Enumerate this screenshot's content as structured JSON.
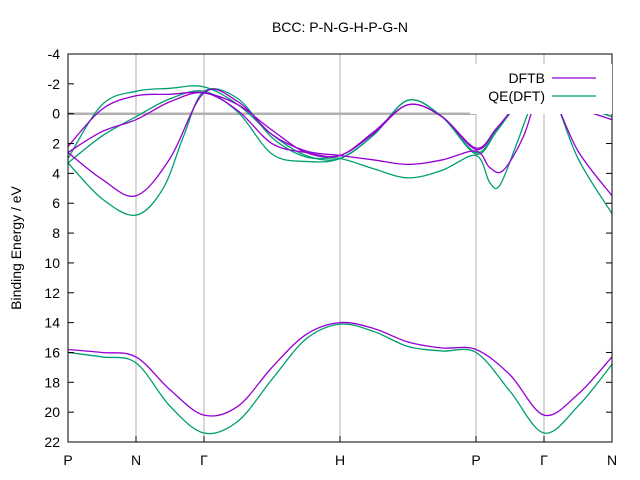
{
  "chart_data": {
    "type": "line",
    "title": "BCC: P-N-G-H-P-G-N",
    "xlabel": "",
    "ylabel": "Binding Energy / eV",
    "x_tick_labels": [
      "P",
      "N",
      "Γ",
      "H",
      "P",
      "Γ",
      "N"
    ],
    "x_ticks": [
      0,
      1,
      2,
      4,
      6,
      7,
      8
    ],
    "xlim": [
      0,
      8
    ],
    "ylim": [
      22,
      -4
    ],
    "y_ticks": [
      -4,
      -2,
      0,
      2,
      4,
      6,
      8,
      10,
      12,
      14,
      16,
      18,
      20,
      22
    ],
    "y_tick_labels": [
      "-4",
      "-2",
      "0",
      "2",
      "4",
      "6",
      "8",
      "10",
      "12",
      "14",
      "16",
      "18",
      "20",
      "22"
    ],
    "y_inverted": true,
    "grid": "vertical at high-symmetry points",
    "zero_line": 0,
    "legend_position": "top-right",
    "series": [
      {
        "name": "DFTB",
        "color": "#9400d3",
        "bands": [
          [
            [
              0,
              15.8
            ],
            [
              0.5,
              16.0
            ],
            [
              1,
              16.3
            ],
            [
              1.5,
              18.5
            ],
            [
              2,
              20.2
            ],
            [
              2.5,
              19.6
            ],
            [
              3,
              17.0
            ],
            [
              3.5,
              14.8
            ],
            [
              4,
              14.0
            ],
            [
              4.5,
              14.4
            ],
            [
              5,
              15.3
            ],
            [
              5.5,
              15.7
            ],
            [
              6,
              15.8
            ],
            [
              6.5,
              17.5
            ],
            [
              7,
              20.2
            ],
            [
              7.5,
              18.8
            ],
            [
              8,
              16.3
            ]
          ],
          [
            [
              0,
              2.6
            ],
            [
              0.5,
              4.4
            ],
            [
              1,
              5.5
            ],
            [
              1.5,
              3.0
            ],
            [
              2,
              -1.4
            ],
            [
              2.5,
              -0.8
            ],
            [
              3,
              1.4
            ],
            [
              3.5,
              2.5
            ],
            [
              4,
              2.8
            ],
            [
              4.5,
              3.1
            ],
            [
              5,
              3.4
            ],
            [
              5.5,
              3.1
            ],
            [
              6,
              2.5
            ],
            [
              6.2,
              3.6
            ],
            [
              6.4,
              3.8
            ],
            [
              6.7,
              1.5
            ],
            [
              6.9,
              -1.3
            ],
            [
              7,
              -1.4
            ],
            [
              7.15,
              -1.0
            ],
            [
              7.5,
              2.5
            ],
            [
              8,
              5.5
            ]
          ],
          [
            [
              0,
              2.6
            ],
            [
              0.5,
              1.2
            ],
            [
              1,
              0.4
            ],
            [
              1.5,
              -0.8
            ],
            [
              2,
              -1.4
            ],
            [
              2.5,
              -0.2
            ],
            [
              3,
              2.0
            ],
            [
              3.5,
              2.6
            ],
            [
              4,
              2.8
            ],
            [
              4.5,
              1.2
            ],
            [
              5,
              -0.6
            ],
            [
              5.5,
              0.2
            ],
            [
              6,
              2.4
            ],
            [
              6.3,
              1.0
            ],
            [
              6.6,
              -0.6
            ],
            [
              6.85,
              -1.3
            ],
            [
              7,
              -1.4
            ],
            [
              7.2,
              -1.2
            ],
            [
              7.5,
              -0.4
            ],
            [
              8,
              0.4
            ]
          ],
          [
            [
              0,
              2.2
            ],
            [
              0.5,
              -0.3
            ],
            [
              1,
              -1.2
            ],
            [
              1.5,
              -1.3
            ],
            [
              2,
              -1.4
            ],
            [
              2.5,
              -0.6
            ],
            [
              3,
              1.1
            ],
            [
              3.5,
              2.6
            ],
            [
              4,
              2.8
            ],
            [
              4.5,
              1.3
            ],
            [
              5,
              -0.6
            ],
            [
              5.5,
              0.2
            ],
            [
              6,
              2.3
            ],
            [
              6.3,
              1.0
            ],
            [
              6.6,
              -0.6
            ],
            [
              6.85,
              -1.3
            ],
            [
              7,
              -1.4
            ],
            [
              7.2,
              -1.2
            ],
            [
              7.5,
              -0.8
            ],
            [
              8,
              -1.2
            ]
          ]
        ]
      },
      {
        "name": "QE(DFT)",
        "color": "#009e73",
        "bands": [
          [
            [
              0,
              16.0
            ],
            [
              0.5,
              16.3
            ],
            [
              1,
              16.7
            ],
            [
              1.5,
              19.6
            ],
            [
              2,
              21.4
            ],
            [
              2.5,
              20.6
            ],
            [
              3,
              17.8
            ],
            [
              3.5,
              15.1
            ],
            [
              4,
              14.1
            ],
            [
              4.5,
              14.6
            ],
            [
              5,
              15.6
            ],
            [
              5.5,
              15.9
            ],
            [
              6,
              16.0
            ],
            [
              6.5,
              18.6
            ],
            [
              7,
              21.4
            ],
            [
              7.5,
              19.6
            ],
            [
              8,
              16.8
            ]
          ],
          [
            [
              0,
              3.3
            ],
            [
              0.5,
              5.7
            ],
            [
              1,
              6.8
            ],
            [
              1.4,
              5.0
            ],
            [
              1.7,
              1.5
            ],
            [
              2,
              -1.5
            ],
            [
              2.5,
              -1.0
            ],
            [
              3,
              1.6
            ],
            [
              3.5,
              2.9
            ],
            [
              4,
              3.0
            ],
            [
              4.5,
              3.7
            ],
            [
              5,
              4.3
            ],
            [
              5.5,
              3.8
            ],
            [
              6,
              2.8
            ],
            [
              6.2,
              4.6
            ],
            [
              6.35,
              4.8
            ],
            [
              6.6,
              2.0
            ],
            [
              6.85,
              -1.0
            ],
            [
              7,
              -1.5
            ],
            [
              7.15,
              -1.1
            ],
            [
              7.5,
              3.0
            ],
            [
              8,
              6.7
            ]
          ],
          [
            [
              0,
              3.3
            ],
            [
              0.5,
              1.5
            ],
            [
              1,
              0.2
            ],
            [
              1.5,
              -1.0
            ],
            [
              2,
              -1.5
            ],
            [
              2.5,
              -0.1
            ],
            [
              3,
              2.7
            ],
            [
              3.5,
              3.2
            ],
            [
              4,
              3.0
            ],
            [
              4.5,
              1.4
            ],
            [
              5,
              -0.9
            ],
            [
              5.5,
              0.2
            ],
            [
              6,
              2.7
            ],
            [
              6.3,
              1.2
            ],
            [
              6.6,
              -0.6
            ],
            [
              6.85,
              -1.4
            ],
            [
              7,
              -1.5
            ],
            [
              7.2,
              -1.3
            ],
            [
              7.5,
              -0.6
            ],
            [
              8,
              0.2
            ]
          ],
          [
            [
              0,
              3.0
            ],
            [
              0.5,
              -0.6
            ],
            [
              1,
              -1.5
            ],
            [
              1.5,
              -1.7
            ],
            [
              2,
              -1.8
            ],
            [
              2.5,
              -0.6
            ],
            [
              3,
              1.4
            ],
            [
              3.5,
              2.8
            ],
            [
              4,
              3.0
            ],
            [
              4.5,
              1.4
            ],
            [
              5,
              -0.9
            ],
            [
              5.5,
              0.2
            ],
            [
              6,
              2.6
            ],
            [
              6.3,
              1.1
            ],
            [
              6.6,
              -0.6
            ],
            [
              6.85,
              -1.4
            ],
            [
              7,
              -1.5
            ],
            [
              7.2,
              -1.3
            ],
            [
              7.5,
              -0.9
            ],
            [
              8,
              -1.4
            ]
          ]
        ]
      }
    ]
  }
}
